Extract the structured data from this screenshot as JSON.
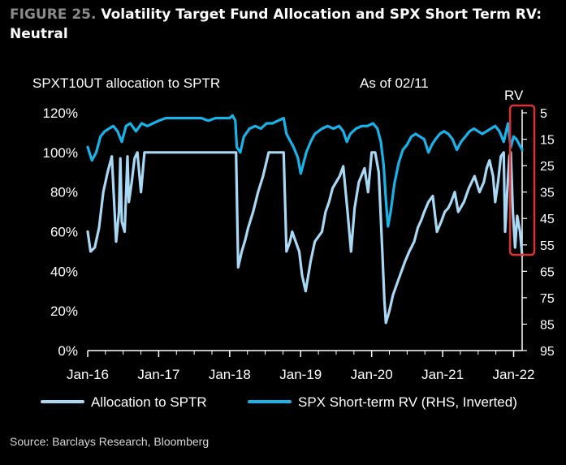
{
  "figure": {
    "number": "FIGURE 25.",
    "title": "Volatility Target Fund Allocation and SPX Short Term RV: Neutral"
  },
  "source": "Source: Barclays Research, Bloomberg",
  "chart_data": {
    "type": "line",
    "title": "FIGURE 25. Volatility Target Fund Allocation and SPX Short Term RV: Neutral",
    "ylabel": "SPXT10UT allocation to SPTR",
    "y2label": "RV",
    "annotation": "As of 02/11",
    "x_ticks": [
      "Jan-16",
      "Jan-17",
      "Jan-18",
      "Jan-19",
      "Jan-20",
      "Jan-21",
      "Jan-22"
    ],
    "x_range": [
      2016.0,
      2022.12
    ],
    "y_ticks": [
      "0%",
      "20%",
      "40%",
      "60%",
      "80%",
      "100%",
      "120%"
    ],
    "ylim": [
      0,
      120
    ],
    "y2_ticks": [
      "5",
      "15",
      "25",
      "35",
      "45",
      "55",
      "65",
      "75",
      "85",
      "95"
    ],
    "y2lim": [
      5,
      95
    ],
    "y2_inverted": true,
    "legend_position": "bottom",
    "highlight": {
      "x_range": [
        2021.95,
        2022.12
      ],
      "color": "#e03030"
    },
    "series": [
      {
        "name": "Allocation to SPTR",
        "axis": "left",
        "color": "#a9d8f5",
        "x": [
          2016.0,
          2016.04,
          2016.1,
          2016.16,
          2016.22,
          2016.28,
          2016.34,
          2016.4,
          2016.44,
          2016.46,
          2016.48,
          2016.52,
          2016.56,
          2016.58,
          2016.62,
          2016.66,
          2016.7,
          2016.75,
          2016.8,
          2016.85,
          2017.0,
          2017.5,
          2018.05,
          2018.09,
          2018.12,
          2018.17,
          2018.22,
          2018.26,
          2018.33,
          2018.4,
          2018.47,
          2018.55,
          2018.62,
          2018.68,
          2018.72,
          2018.76,
          2018.8,
          2018.85,
          2018.88,
          2018.93,
          2018.98,
          2019.02,
          2019.07,
          2019.14,
          2019.2,
          2019.3,
          2019.35,
          2019.4,
          2019.45,
          2019.55,
          2019.6,
          2019.66,
          2019.71,
          2019.76,
          2019.82,
          2019.9,
          2019.95,
          2020.0,
          2020.05,
          2020.1,
          2020.15,
          2020.18,
          2020.2,
          2020.25,
          2020.3,
          2020.36,
          2020.42,
          2020.47,
          2020.53,
          2020.6,
          2020.65,
          2020.7,
          2020.74,
          2020.8,
          2020.86,
          2020.92,
          2020.98,
          2021.03,
          2021.08,
          2021.12,
          2021.17,
          2021.22,
          2021.3,
          2021.37,
          2021.45,
          2021.52,
          2021.58,
          2021.62,
          2021.66,
          2021.71,
          2021.74,
          2021.78,
          2021.82,
          2021.86,
          2021.88,
          2021.91,
          2021.94,
          2021.96,
          2021.99,
          2022.02,
          2022.05,
          2022.09,
          2022.12
        ],
        "y": [
          60,
          50,
          52,
          62,
          80,
          90,
          98,
          55,
          70,
          97,
          65,
          60,
          98,
          75,
          85,
          97,
          100,
          80,
          100,
          100,
          100,
          100,
          100,
          100,
          42,
          50,
          56,
          62,
          70,
          80,
          88,
          100,
          100,
          100,
          100,
          100,
          50,
          55,
          60,
          55,
          50,
          38,
          30,
          45,
          55,
          60,
          70,
          75,
          82,
          88,
          93,
          70,
          50,
          72,
          85,
          92,
          80,
          100,
          100,
          90,
          50,
          25,
          14,
          20,
          28,
          34,
          40,
          45,
          50,
          55,
          62,
          66,
          70,
          75,
          78,
          60,
          65,
          70,
          72,
          75,
          80,
          70,
          75,
          82,
          88,
          80,
          85,
          92,
          96,
          88,
          75,
          85,
          98,
          100,
          60,
          80,
          98,
          100,
          70,
          52,
          68,
          60,
          48
        ]
      },
      {
        "name": "SPX Short-term RV (RHS, Inverted)",
        "axis": "right",
        "color": "#16b4ea",
        "x": [
          2016.0,
          2016.06,
          2016.12,
          2016.18,
          2016.24,
          2016.3,
          2016.36,
          2016.42,
          2016.48,
          2016.54,
          2016.6,
          2016.68,
          2016.76,
          2016.84,
          2016.92,
          2017.0,
          2017.1,
          2017.2,
          2017.3,
          2017.4,
          2017.5,
          2017.6,
          2017.7,
          2017.8,
          2017.9,
          2018.0,
          2018.04,
          2018.08,
          2018.1,
          2018.15,
          2018.2,
          2018.28,
          2018.36,
          2018.44,
          2018.52,
          2018.6,
          2018.68,
          2018.76,
          2018.8,
          2018.84,
          2018.9,
          2018.96,
          2019.0,
          2019.04,
          2019.08,
          2019.14,
          2019.2,
          2019.3,
          2019.38,
          2019.46,
          2019.54,
          2019.6,
          2019.65,
          2019.7,
          2019.78,
          2019.86,
          2019.94,
          2020.02,
          2020.08,
          2020.13,
          2020.17,
          2020.2,
          2020.23,
          2020.27,
          2020.32,
          2020.38,
          2020.44,
          2020.5,
          2020.56,
          2020.62,
          2020.68,
          2020.74,
          2020.8,
          2020.85,
          2020.9,
          2020.96,
          2021.02,
          2021.08,
          2021.14,
          2021.2,
          2021.26,
          2021.32,
          2021.38,
          2021.44,
          2021.5,
          2021.56,
          2021.62,
          2021.68,
          2021.74,
          2021.8,
          2021.86,
          2021.92,
          2021.96,
          2022.0,
          2022.04,
          2022.08,
          2022.12
        ],
        "y": [
          18,
          23,
          20,
          14,
          12,
          11,
          10,
          12,
          16,
          10,
          9,
          12,
          9,
          10,
          9,
          8,
          7,
          7,
          7,
          7,
          7,
          7,
          8,
          7,
          7,
          7,
          6,
          8,
          18,
          20,
          14,
          11,
          10,
          11,
          9,
          9,
          8,
          7,
          13,
          15,
          18,
          22,
          28,
          24,
          20,
          16,
          13,
          11,
          10,
          11,
          10,
          12,
          16,
          13,
          11,
          10,
          10,
          9,
          11,
          16,
          25,
          38,
          48,
          42,
          32,
          24,
          19,
          17,
          14,
          13,
          14,
          15,
          20,
          17,
          15,
          13,
          12,
          13,
          15,
          19,
          16,
          14,
          12,
          11,
          12,
          13,
          12,
          11,
          10,
          12,
          16,
          9,
          18,
          14,
          15,
          17,
          19
        ]
      }
    ]
  }
}
